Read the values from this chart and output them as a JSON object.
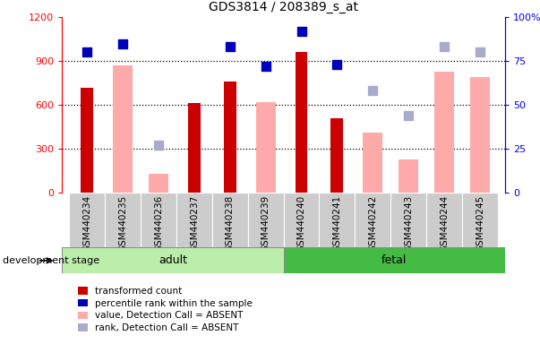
{
  "title": "GDS3814 / 208389_s_at",
  "samples": [
    "GSM440234",
    "GSM440235",
    "GSM440236",
    "GSM440237",
    "GSM440238",
    "GSM440239",
    "GSM440240",
    "GSM440241",
    "GSM440242",
    "GSM440243",
    "GSM440244",
    "GSM440245"
  ],
  "red_bars": [
    720,
    null,
    null,
    610,
    760,
    null,
    960,
    510,
    null,
    null,
    null,
    null
  ],
  "pink_bars": [
    null,
    870,
    130,
    null,
    null,
    620,
    null,
    null,
    410,
    230,
    830,
    790
  ],
  "blue_dots_pct": [
    80,
    85,
    null,
    null,
    83,
    72,
    92,
    73,
    null,
    null,
    null,
    null
  ],
  "lightblue_dots_pct": [
    null,
    null,
    27,
    null,
    null,
    null,
    null,
    null,
    58,
    44,
    83,
    80
  ],
  "ylim_left": [
    0,
    1200
  ],
  "ylim_right": [
    0,
    100
  ],
  "yticks_left": [
    0,
    300,
    600,
    900,
    1200
  ],
  "yticks_right": [
    0,
    25,
    50,
    75,
    100
  ],
  "ytick_labels_right": [
    "0",
    "25",
    "50",
    "75",
    "100%"
  ],
  "red_color": "#cc0000",
  "pink_color": "#ffaaaa",
  "blue_color": "#0000bb",
  "lightblue_color": "#aaaacc",
  "adult_bg": "#bbeeaa",
  "fetal_bg": "#44bb44",
  "tick_bg": "#cccccc",
  "adult_label": "adult",
  "fetal_label": "fetal",
  "stage_label": "development stage",
  "legend_labels": [
    "transformed count",
    "percentile rank within the sample",
    "value, Detection Call = ABSENT",
    "rank, Detection Call = ABSENT"
  ],
  "legend_colors": [
    "#cc0000",
    "#0000bb",
    "#ffaaaa",
    "#aaaacc"
  ]
}
